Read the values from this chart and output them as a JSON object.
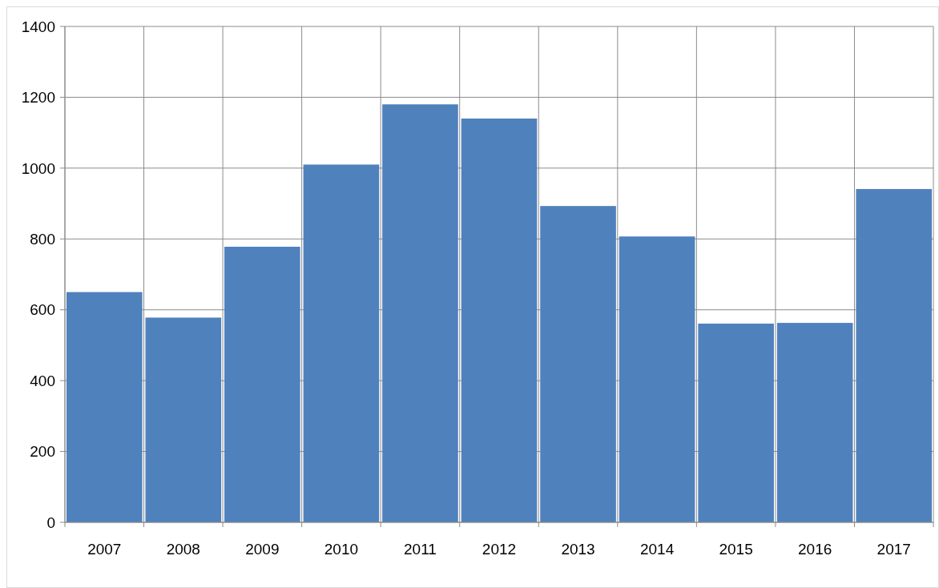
{
  "chart_data": {
    "type": "bar",
    "categories": [
      "2007",
      "2008",
      "2009",
      "2010",
      "2011",
      "2012",
      "2013",
      "2014",
      "2015",
      "2016",
      "2017"
    ],
    "values": [
      650,
      578,
      778,
      1010,
      1180,
      1140,
      893,
      807,
      561,
      563,
      941
    ],
    "color": "#4f81bd",
    "ylim": [
      0,
      1400
    ],
    "yticks": [
      0,
      200,
      400,
      600,
      800,
      1000,
      1200,
      1400
    ],
    "grid": true
  }
}
